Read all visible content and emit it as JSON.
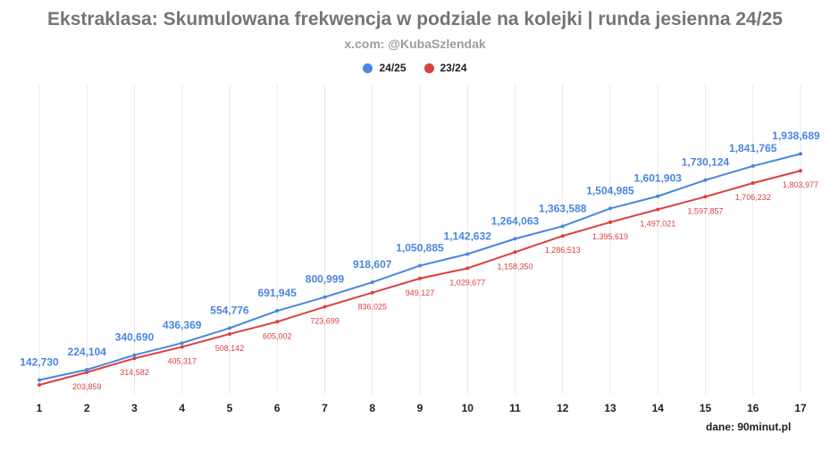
{
  "colors": {
    "series_a": "#4a86e0",
    "series_b": "#dc4040",
    "grid": "#e9e9e9"
  },
  "chart_data": {
    "type": "line",
    "title": "Ekstraklasa: Skumulowana frekwencja w podziale na kolejki | runda jesienna 24/25",
    "subtitle": "x.com: @KubaSzlendak",
    "source": "dane: 90minut.pl",
    "legend_position": "top-center",
    "grid": "vertical",
    "x": [
      "1",
      "2",
      "3",
      "4",
      "5",
      "6",
      "7",
      "8",
      "9",
      "10",
      "11",
      "12",
      "13",
      "14",
      "15",
      "16",
      "17"
    ],
    "series": [
      {
        "name": "24/25",
        "values": [
          142730,
          224104,
          340690,
          436369,
          554776,
          691945,
          800999,
          918607,
          1050885,
          1142632,
          1264063,
          1363588,
          1504985,
          1601903,
          1730124,
          1841765,
          1938689
        ],
        "labels": [
          "142,730",
          "224,104",
          "340,690",
          "436,369",
          "554,776",
          "691,945",
          "800,999",
          "918,607",
          "1,050,885",
          "1,142,632",
          "1,264,063",
          "1,363,588",
          "1,504,985",
          "1,601,903",
          "1,730,124",
          "1,841,765",
          "1,938,689"
        ]
      },
      {
        "name": "23/24",
        "values": [
          null,
          203859,
          314582,
          405317,
          508142,
          605002,
          723699,
          836025,
          949127,
          1029677,
          1158350,
          1286513,
          1395619,
          1497021,
          1597857,
          1706232,
          1803977
        ],
        "labels": [
          "",
          "203,859",
          "314,582",
          "405,317",
          "508,142",
          "605,002",
          "723,699",
          "836,025",
          "949,127",
          "1,029,677",
          "1,158,350",
          "1,286,513",
          "1,395,619",
          "1,497,021",
          "1,597,857",
          "1,706,232",
          "1,803,977"
        ]
      }
    ]
  }
}
